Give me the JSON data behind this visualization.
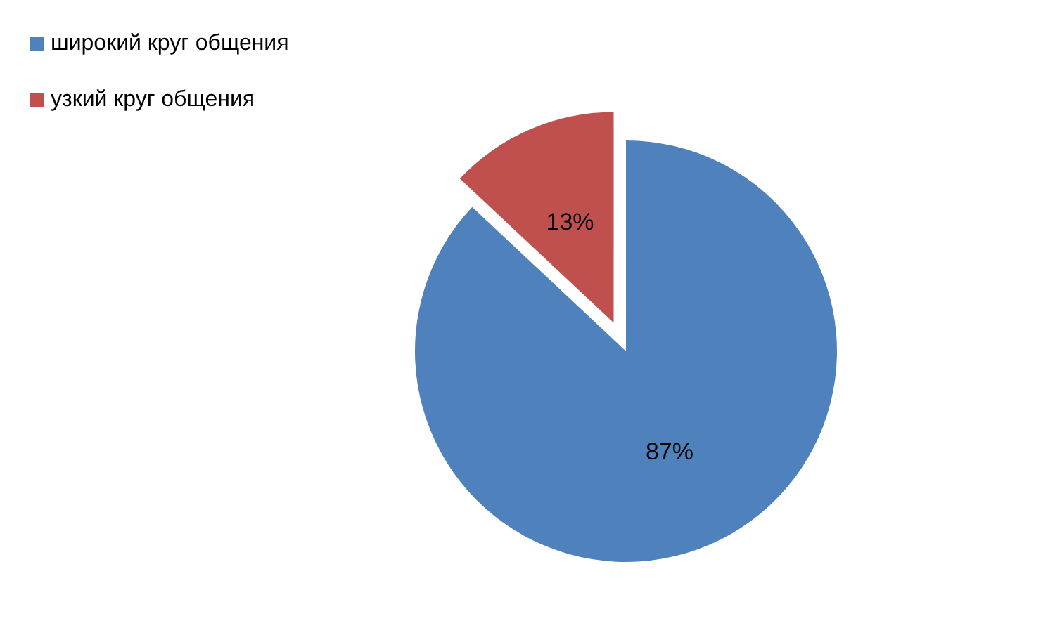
{
  "chart_data": {
    "type": "pie",
    "categories": [
      "широкий круг общения",
      "узкий круг общения"
    ],
    "values": [
      87,
      13
    ],
    "colors": [
      "#4f81bd",
      "#c0504d"
    ],
    "value_labels": [
      "87%",
      "13%"
    ],
    "legend": "top left"
  }
}
